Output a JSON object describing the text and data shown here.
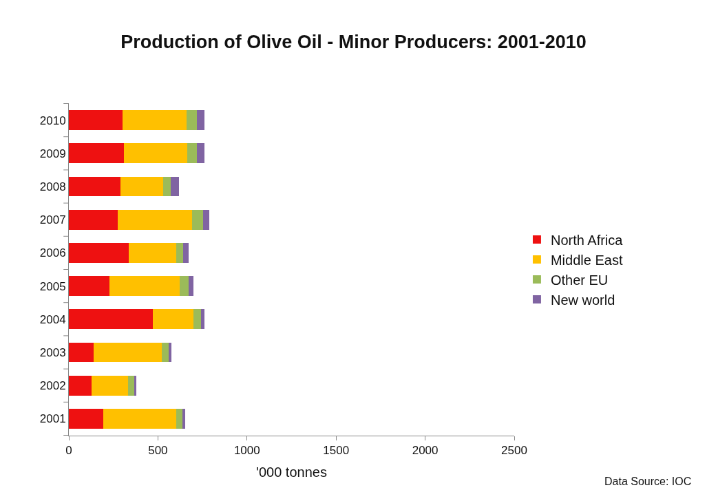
{
  "chart_data": {
    "type": "bar",
    "orientation": "horizontal",
    "stacked": true,
    "title": "Production of Olive Oil - Minor Producers: 2001-2010",
    "xlabel": "'000 tonnes",
    "annotations": [
      "Data Source: IOC"
    ],
    "categories": [
      "2010",
      "2009",
      "2008",
      "2007",
      "2006",
      "2005",
      "2004",
      "2003",
      "2002",
      "2001"
    ],
    "series": [
      {
        "name": "North Africa",
        "color": "#ee1111",
        "values": [
          300,
          311,
          290,
          274,
          338,
          227,
          473,
          139,
          128,
          192
        ]
      },
      {
        "name": "Middle East",
        "color": "#ffc000",
        "values": [
          359,
          353,
          240,
          418,
          263,
          394,
          225,
          381,
          206,
          412
        ]
      },
      {
        "name": "Other EU",
        "color": "#9bbb59",
        "values": [
          60,
          55,
          40,
          60,
          40,
          50,
          45,
          41,
          33,
          34
        ]
      },
      {
        "name": "New world",
        "color": "#8064a2",
        "values": [
          44,
          44,
          47,
          37,
          30,
          27,
          20,
          13,
          11,
          16
        ]
      }
    ],
    "xlim": [
      0,
      2500
    ],
    "xticks": [
      0,
      500,
      1000,
      1500,
      2000,
      2500
    ],
    "legend": "right"
  }
}
